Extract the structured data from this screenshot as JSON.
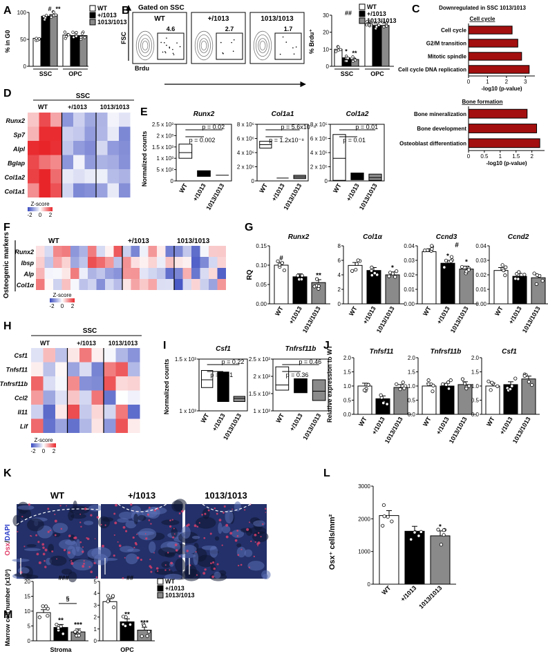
{
  "colors": {
    "wt": "#ffffff",
    "het": "#000000",
    "hom": "#8a8a8a",
    "go_bar": "#a30f0f",
    "osx": "#e0406a",
    "dapi": "#233069"
  },
  "panel_letters": [
    "A",
    "B",
    "C",
    "D",
    "E",
    "F",
    "G",
    "H",
    "I",
    "J",
    "K",
    "L",
    "M"
  ],
  "legend": {
    "wt": "WT",
    "het": "+/1013",
    "hom": "1013/1013"
  },
  "genotypes": [
    "WT",
    "+/1013",
    "1013/1013"
  ],
  "panelA": {
    "ylabel": "% in G0",
    "ticks": [
      "0",
      "50",
      "100"
    ],
    "groups": [
      "SSC",
      "OPC"
    ],
    "marks_ssc": [
      "#",
      "**"
    ],
    "chart_data": {
      "type": "bar",
      "categories": [
        "SSC",
        "OPC"
      ],
      "series": [
        {
          "name": "WT",
          "values": [
            52,
            58
          ]
        },
        {
          "name": "+/1013",
          "values": [
            93,
            57
          ]
        },
        {
          "name": "1013/1013",
          "values": [
            96,
            57
          ]
        }
      ],
      "ylim": [
        0,
        100
      ]
    }
  },
  "panelB": {
    "gate_title": "Gated on SSC",
    "fsc": "FSC",
    "brdu": "Brdu",
    "plots": [
      {
        "label": "WT",
        "value": "4.6"
      },
      {
        "label": "+/1013",
        "value": "2.7"
      },
      {
        "label": "1013/1013",
        "value": "1.7"
      }
    ],
    "bar_ylabel": "% Brdu⁺",
    "ticks": [
      "0",
      "10",
      "20",
      "30"
    ],
    "groups": [
      "SSC",
      "OPC"
    ],
    "mark_top": "##",
    "marks_ssc": [
      "*",
      "**"
    ],
    "chart_data": {
      "type": "bar",
      "categories": [
        "SSC",
        "OPC"
      ],
      "series": [
        {
          "name": "WT",
          "values": [
            10,
            25
          ]
        },
        {
          "name": "+/1013",
          "values": [
            5,
            24
          ]
        },
        {
          "name": "1013/1013",
          "values": [
            4,
            24
          ]
        }
      ],
      "ylim": [
        0,
        30
      ]
    }
  },
  "panelC": {
    "title": "Downregulated in SSC 1013/1013",
    "cc_heading": "Cell cycle",
    "bf_heading": "Bone formation",
    "xlabel": "-log10 (p-value)",
    "cc_ticks": [
      "0",
      "1",
      "2",
      "3"
    ],
    "bf_ticks": [
      "0",
      "0.5",
      "1",
      "1.5",
      "2"
    ],
    "chart_data": [
      {
        "type": "bar",
        "categories": [
          "Cell cycle",
          "G2/M transition",
          "Mitotic spindle",
          "Cell cycle DNA replication"
        ],
        "values": [
          2.3,
          2.6,
          2.8,
          3.2
        ],
        "xlim": [
          0,
          3.5
        ]
      },
      {
        "type": "bar",
        "categories": [
          "Bone mineralization",
          "Bone development",
          "Osteoblast differentiation"
        ],
        "values": [
          1.85,
          2.15,
          2.25
        ],
        "xlim": [
          0,
          2.4
        ]
      }
    ]
  },
  "panelD": {
    "title": "SSC",
    "genes": [
      "Runx2",
      "Sp7",
      "Alpl",
      "Bglap",
      "Col1a2",
      "Col1a1"
    ],
    "zscore": "Z-score",
    "zticks": [
      "-2",
      "0",
      "2"
    ]
  },
  "panelE": {
    "ylabel": "Normalized counts",
    "plots": [
      {
        "gene": "Runx2",
        "ticks": [
          "2.5 x 10³",
          "2 x 10³",
          "1.5 x 10³",
          "1 x 10³",
          "5 x 10²",
          "0"
        ],
        "p1": "p = 0.02",
        "p2": "p = 0.002"
      },
      {
        "gene": "Col1a1",
        "ticks": [
          "8 x 10⁶",
          "6 x 10⁶",
          "4 x 10⁶",
          "2 x 10⁶",
          "0"
        ],
        "p1": "p = 5.6x10⁻⁶",
        "p2": "p = 1.2x10⁻⁸"
      },
      {
        "gene": "Col1a2",
        "ticks": [
          "8 x 10⁵",
          "6 x 10⁵",
          "4 x 10⁵",
          "2 x 10⁵",
          "0"
        ],
        "p1": "p = 0.01",
        "p2": "p = 0.01"
      }
    ]
  },
  "panelF": {
    "side_label": "Osteogenic markers",
    "genes": [
      "Runx2",
      "Ibsp",
      "Alp",
      "Col1α"
    ],
    "zscore": "Z-score",
    "zticks": [
      "-2",
      "0",
      "2"
    ]
  },
  "panelG": {
    "ylabel": "RQ",
    "plots": [
      {
        "gene": "Runx2",
        "ticks": [
          "0.00",
          "0.05",
          "0.10",
          "0.15"
        ],
        "marks": [
          "#",
          "",
          "**"
        ],
        "chart_data": {
          "type": "bar",
          "categories": [
            "WT",
            "+/1013",
            "1013/1013"
          ],
          "values": [
            0.1,
            0.07,
            0.055
          ],
          "ylim": [
            0,
            0.15
          ]
        }
      },
      {
        "gene": "Col1α",
        "ticks": [
          "0",
          "2",
          "4",
          "6",
          "8"
        ],
        "marks": [
          "",
          "",
          "*"
        ],
        "chart_data": {
          "type": "bar",
          "categories": [
            "WT",
            "+/1013",
            "1013/1013"
          ],
          "values": [
            5.3,
            4.6,
            4.0
          ],
          "ylim": [
            0,
            8
          ]
        }
      },
      {
        "gene": "Ccnd3",
        "ticks": [
          "0.00",
          "0.01",
          "0.02",
          "0.03",
          "0.04"
        ],
        "marks": [
          "",
          "*",
          "*"
        ],
        "mark_top": "#",
        "chart_data": {
          "type": "bar",
          "categories": [
            "WT",
            "+/1013",
            "1013/1013"
          ],
          "values": [
            0.036,
            0.028,
            0.024
          ],
          "ylim": [
            0,
            0.04
          ]
        }
      },
      {
        "gene": "Ccnd2",
        "ticks": [
          "0.00",
          "0.01",
          "0.02",
          "0.03",
          "0.04"
        ],
        "marks": [
          "",
          "",
          ""
        ],
        "chart_data": {
          "type": "bar",
          "categories": [
            "WT",
            "+/1013",
            "1013/1013"
          ],
          "values": [
            0.023,
            0.019,
            0.018
          ],
          "ylim": [
            0,
            0.04
          ]
        }
      }
    ]
  },
  "panelH": {
    "title": "SSC",
    "genes": [
      "Csf1",
      "Tnfsf11",
      "Tnfrsf11b",
      "Ccl2",
      "Il11",
      "Lif"
    ],
    "zscore": "Z-score",
    "zticks": [
      "-2",
      "0",
      "2"
    ]
  },
  "panelI": {
    "ylabel": "Normalized counts",
    "plots": [
      {
        "gene": "Csf1",
        "ticks": [
          "1.5 x 10³",
          "1 x 10³"
        ],
        "p1": "p = 0.22",
        "p2": "p = 0.61"
      },
      {
        "gene": "Tnfrsf11b",
        "ticks": [
          "2.5 x 10²",
          "2 x 10²",
          "1.5 x 10²",
          "1 x 10²"
        ],
        "p1": "p = 0.46",
        "p2": "p = 0.36"
      }
    ]
  },
  "panelJ": {
    "ylabel": "Relative expression to WT",
    "plots": [
      {
        "gene": "Tnfsf11",
        "ticks": [
          "0.0",
          "0.5",
          "1.0",
          "1.5",
          "2.0"
        ],
        "chart_data": {
          "type": "bar",
          "categories": [
            "WT",
            "+/1013",
            "1013/1013"
          ],
          "values": [
            1.0,
            0.55,
            0.95
          ],
          "ylim": [
            0,
            2
          ]
        }
      },
      {
        "gene": "Tnfrsf11b",
        "ticks": [
          "0.0",
          "0.5",
          "1.0",
          "1.5",
          "2.0"
        ],
        "chart_data": {
          "type": "bar",
          "categories": [
            "WT",
            "+/1013",
            "1013/1013"
          ],
          "values": [
            1.0,
            1.0,
            1.05
          ],
          "ylim": [
            0,
            2
          ]
        }
      },
      {
        "gene": "Csf1",
        "ticks": [
          "0.0",
          "0.5",
          "1.0",
          "1.5",
          "2.0"
        ],
        "chart_data": {
          "type": "bar",
          "categories": [
            "WT",
            "+/1013",
            "1013/1013"
          ],
          "values": [
            1.0,
            1.05,
            1.25
          ],
          "ylim": [
            0,
            2
          ]
        }
      }
    ]
  },
  "panelK": {
    "labels": [
      "WT",
      "+/1013",
      "1013/1013"
    ],
    "stain_osx": "Osx",
    "stain_sep": "/",
    "stain_dapi": "DAPI"
  },
  "panelL": {
    "ylabel": "Osx⁺ cells/mm²",
    "ticks": [
      "0",
      "1000",
      "2000",
      "3000"
    ],
    "marks": [
      "",
      "",
      "*"
    ],
    "chart_data": {
      "type": "bar",
      "categories": [
        "WT",
        "+/1013",
        "1013/1013"
      ],
      "values": [
        2100,
        1620,
        1480
      ],
      "ylim": [
        0,
        3000
      ]
    }
  },
  "panelM": {
    "ylabel": "Marrow cell number (x10³)",
    "plots": [
      {
        "group": "Stroma",
        "ticks": [
          "0",
          "5",
          "10",
          "15",
          "20"
        ],
        "top": "###",
        "sect": "§",
        "marks": [
          "",
          "**",
          "***"
        ],
        "chart_data": {
          "type": "bar",
          "categories": [
            "WT",
            "+/1013",
            "1013/1013"
          ],
          "values": [
            9.5,
            4.5,
            3.0
          ],
          "ylim": [
            0,
            20
          ]
        }
      },
      {
        "group": "OPC",
        "ticks": [
          "0",
          "1",
          "2",
          "3",
          "4",
          "5"
        ],
        "top": "##",
        "marks": [
          "",
          "**",
          "***"
        ],
        "chart_data": {
          "type": "bar",
          "categories": [
            "WT",
            "+/1013",
            "1013/1013"
          ],
          "values": [
            3.3,
            1.6,
            0.9
          ],
          "ylim": [
            0,
            5
          ]
        }
      }
    ]
  }
}
